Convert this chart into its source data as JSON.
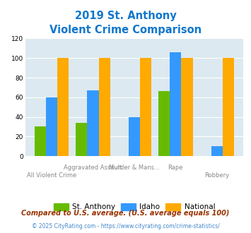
{
  "title_line1": "2019 St. Anthony",
  "title_line2": "Violent Crime Comparison",
  "st_anthony": [
    30,
    34,
    0,
    66,
    0
  ],
  "idaho": [
    60,
    67,
    40,
    106,
    10
  ],
  "national": [
    100,
    100,
    100,
    100,
    100
  ],
  "color_st_anthony": "#66bb00",
  "color_idaho": "#3399ff",
  "color_national": "#ffaa00",
  "bg_color": "#dce9f0",
  "ylim": [
    0,
    120
  ],
  "yticks": [
    0,
    20,
    40,
    60,
    80,
    100,
    120
  ],
  "legend_labels": [
    "St. Anthony",
    "Idaho",
    "National"
  ],
  "footnote1": "Compared to U.S. average. (U.S. average equals 100)",
  "footnote2": "© 2025 CityRating.com - https://www.cityrating.com/crime-statistics/",
  "title_color": "#1177cc",
  "footnote1_color": "#993300",
  "footnote2_color": "#4488cc"
}
